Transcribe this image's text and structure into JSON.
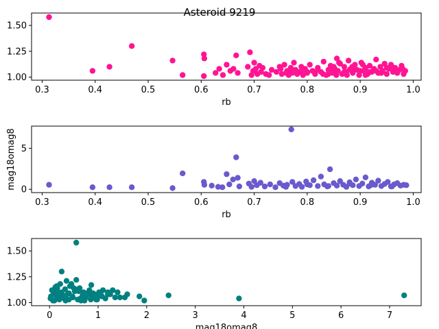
{
  "title": "Asteroid 9219",
  "chart_data": [
    {
      "type": "scatter",
      "xlabel": "rb",
      "ylabel": "",
      "xlim": [
        0.28,
        1.015
      ],
      "ylim": [
        0.97,
        1.62
      ],
      "xticks": [
        0.3,
        0.4,
        0.5,
        0.6,
        0.7,
        0.8,
        0.9,
        1.0
      ],
      "xtick_labels": [
        "0.3",
        "0.4",
        "0.5",
        "0.6",
        "0.7",
        "0.8",
        "0.9",
        "1.0"
      ],
      "yticks": [
        1.0,
        1.25,
        1.5
      ],
      "ytick_labels": [
        "1.00",
        "1.25",
        "1.50"
      ],
      "color": "#ff1493",
      "series": [
        {
          "x": [
            0.313,
            0.395,
            0.427,
            0.469,
            0.546,
            0.565,
            0.605,
            0.606,
            0.605,
            0.627,
            0.634,
            0.641,
            0.648,
            0.655,
            0.661,
            0.666,
            0.669,
            0.688,
            0.692,
            0.695,
            0.698,
            0.7,
            0.703,
            0.706,
            0.71,
            0.713,
            0.716,
            0.722,
            0.728,
            0.733,
            0.742,
            0.748,
            0.752,
            0.757,
            0.762,
            0.765,
            0.769,
            0.772,
            0.775,
            0.778,
            0.781,
            0.785,
            0.789,
            0.792,
            0.796,
            0.8,
            0.805,
            0.81,
            0.815,
            0.82,
            0.826,
            0.831,
            0.836,
            0.84,
            0.844,
            0.848,
            0.852,
            0.856,
            0.858,
            0.862,
            0.866,
            0.87,
            0.874,
            0.878,
            0.882,
            0.886,
            0.89,
            0.894,
            0.898,
            0.902,
            0.906,
            0.91,
            0.914,
            0.918,
            0.922,
            0.926,
            0.93,
            0.934,
            0.938,
            0.942,
            0.946,
            0.95,
            0.954,
            0.958,
            0.962,
            0.966,
            0.97,
            0.974,
            0.978,
            0.982,
            0.985,
            0.76,
            0.79,
            0.83,
            0.85,
            0.87,
            0.89,
            0.91,
            0.93,
            0.95,
            0.97,
            0.75,
            0.8,
            0.84,
            0.88,
            0.92,
            0.96,
            0.86,
            0.9,
            0.94,
            0.98,
            0.77,
            0.82,
            0.845,
            0.875,
            0.905,
            0.935,
            0.965,
            0.855,
            0.885,
            0.915
          ],
          "y": [
            1.58,
            1.06,
            1.1,
            1.3,
            1.16,
            1.02,
            1.22,
            1.18,
            1.01,
            1.04,
            1.08,
            1.02,
            1.12,
            1.06,
            1.08,
            1.21,
            1.04,
            1.1,
            1.24,
            1.02,
            1.06,
            1.14,
            1.08,
            1.03,
            1.11,
            1.05,
            1.09,
            1.03,
            1.02,
            1.07,
            1.05,
            1.1,
            1.03,
            1.12,
            1.06,
            1.02,
            1.09,
            1.04,
            1.14,
            1.07,
            1.03,
            1.05,
            1.1,
            1.02,
            1.08,
            1.04,
            1.12,
            1.06,
            1.03,
            1.09,
            1.05,
            1.15,
            1.02,
            1.07,
            1.11,
            1.04,
            1.08,
            1.18,
            1.06,
            1.13,
            1.03,
            1.1,
            1.05,
            1.16,
            1.08,
            1.04,
            1.12,
            1.07,
            1.02,
            1.14,
            1.06,
            1.09,
            1.03,
            1.11,
            1.05,
            1.08,
            1.17,
            1.04,
            1.1,
            1.06,
            1.13,
            1.03,
            1.08,
            1.12,
            1.05,
            1.09,
            1.04,
            1.07,
            1.11,
            1.03,
            1.06,
            1.04,
            1.06,
            1.03,
            1.1,
            1.05,
            1.08,
            1.02,
            1.06,
            1.09,
            1.04,
            1.08,
            1.05,
            1.03,
            1.07,
            1.05,
            1.1,
            1.14,
            1.06,
            1.04,
            1.08,
            1.05,
            1.07,
            1.09,
            1.02,
            1.12,
            1.04,
            1.07,
            1.02,
            1.1,
            1.05
          ]
        }
      ]
    },
    {
      "type": "scatter",
      "xlabel": "rb",
      "ylabel": "mag18omag8",
      "xlim": [
        0.28,
        1.015
      ],
      "ylim": [
        -0.4,
        7.7
      ],
      "xticks": [
        0.3,
        0.4,
        0.5,
        0.6,
        0.7,
        0.8,
        0.9,
        1.0
      ],
      "xtick_labels": [
        "0.3",
        "0.4",
        "0.5",
        "0.6",
        "0.7",
        "0.8",
        "0.9",
        "1.0"
      ],
      "yticks": [
        0,
        5
      ],
      "ytick_labels": [
        "0",
        "5"
      ],
      "color": "#6a5acd",
      "series": [
        {
          "x": [
            0.313,
            0.395,
            0.427,
            0.469,
            0.546,
            0.565,
            0.605,
            0.606,
            0.62,
            0.632,
            0.64,
            0.648,
            0.653,
            0.66,
            0.666,
            0.669,
            0.672,
            0.69,
            0.695,
            0.7,
            0.705,
            0.712,
            0.72,
            0.73,
            0.74,
            0.748,
            0.755,
            0.762,
            0.77,
            0.772,
            0.778,
            0.785,
            0.79,
            0.798,
            0.805,
            0.812,
            0.82,
            0.826,
            0.832,
            0.838,
            0.843,
            0.85,
            0.856,
            0.862,
            0.868,
            0.874,
            0.88,
            0.886,
            0.892,
            0.898,
            0.904,
            0.91,
            0.916,
            0.922,
            0.928,
            0.934,
            0.94,
            0.946,
            0.952,
            0.958,
            0.964,
            0.97,
            0.976,
            0.982,
            0.987,
            0.76,
            0.8,
            0.84,
            0.88,
            0.92,
            0.96
          ],
          "y": [
            0.55,
            0.25,
            0.25,
            0.25,
            0.15,
            1.95,
            0.9,
            0.55,
            0.45,
            0.3,
            0.25,
            1.85,
            0.6,
            1.2,
            3.9,
            1.4,
            0.35,
            0.7,
            0.3,
            1.0,
            0.5,
            0.8,
            0.35,
            0.6,
            0.25,
            0.75,
            0.45,
            0.55,
            7.3,
            0.9,
            0.4,
            0.65,
            0.3,
            0.95,
            0.5,
            1.1,
            0.4,
            1.55,
            0.6,
            0.35,
            2.45,
            0.75,
            0.45,
            1.0,
            0.55,
            0.3,
            0.85,
            0.5,
            1.2,
            0.4,
            0.7,
            1.45,
            0.35,
            0.8,
            0.55,
            1.05,
            0.4,
            0.65,
            0.9,
            0.35,
            0.6,
            0.75,
            0.45,
            0.55,
            0.5,
            0.3,
            0.6,
            0.4,
            0.7,
            0.5,
            0.35
          ]
        }
      ]
    },
    {
      "type": "scatter",
      "xlabel": "mag18omag8",
      "ylabel": "",
      "xlim": [
        -0.37,
        7.65
      ],
      "ylim": [
        0.97,
        1.62
      ],
      "xticks": [
        0,
        1,
        2,
        3,
        4,
        5,
        6,
        7
      ],
      "xtick_labels": [
        "0",
        "1",
        "2",
        "3",
        "4",
        "5",
        "6",
        "7"
      ],
      "yticks": [
        1.0,
        1.25,
        1.5
      ],
      "ytick_labels": [
        "1.00",
        "1.25",
        "1.50"
      ],
      "color": "#008080",
      "series": [
        {
          "x": [
            0.55,
            0.25,
            0.25,
            0.25,
            0.15,
            1.95,
            0.9,
            0.55,
            0.45,
            0.3,
            1.85,
            0.6,
            1.2,
            3.9,
            1.4,
            0.35,
            0.7,
            1.0,
            0.5,
            0.8,
            0.6,
            0.75,
            7.3,
            0.9,
            0.4,
            0.65,
            0.95,
            1.1,
            1.55,
            2.45,
            0.85,
            1.2,
            1.45,
            1.05,
            0.02,
            0.05,
            0.08,
            0.1,
            0.12,
            0.15,
            0.18,
            0.2,
            0.22,
            0.28,
            0.32,
            0.35,
            0.38,
            0.42,
            0.48,
            0.52,
            0.58,
            0.62,
            0.68,
            0.72,
            0.78,
            0.82,
            0.88,
            0.92,
            0.98,
            1.02,
            1.08,
            1.15,
            1.25,
            1.3,
            1.35,
            1.6,
            0.03,
            0.07,
            0.11,
            0.16,
            0.21,
            0.26,
            0.33,
            0.4,
            0.47,
            0.53,
            0.64,
            0.7,
            0.86,
            0.96
          ],
          "y": [
            1.58,
            1.06,
            1.1,
            1.3,
            1.16,
            1.02,
            1.08,
            1.22,
            1.18,
            1.04,
            1.06,
            1.12,
            1.08,
            1.04,
            1.1,
            1.21,
            1.1,
            1.06,
            1.14,
            1.08,
            1.11,
            1.05,
            1.07,
            1.09,
            1.03,
            1.02,
            1.06,
            1.12,
            1.05,
            1.07,
            1.03,
            1.1,
            1.05,
            1.08,
            1.04,
            1.12,
            1.08,
            1.02,
            1.15,
            1.06,
            1.1,
            1.03,
            1.18,
            1.07,
            1.13,
            1.04,
            1.09,
            1.16,
            1.05,
            1.11,
            1.03,
            1.14,
            1.07,
            1.02,
            1.09,
            1.12,
            1.05,
            1.08,
            1.03,
            1.1,
            1.06,
            1.04,
            1.08,
            1.12,
            1.05,
            1.08,
            1.06,
            1.02,
            1.1,
            1.14,
            1.04,
            1.07,
            1.02,
            1.09,
            1.06,
            1.13,
            1.04,
            1.08,
            1.17,
            1.03
          ]
        }
      ]
    }
  ]
}
